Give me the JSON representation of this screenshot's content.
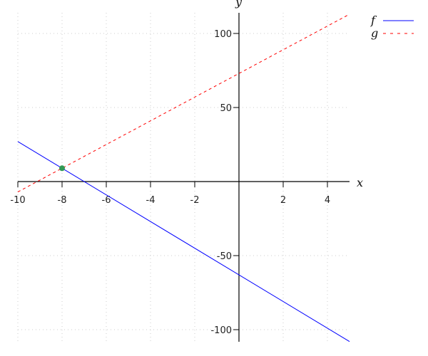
{
  "chart_data": {
    "type": "line",
    "title": "",
    "xlabel": "x",
    "ylabel": "y",
    "xlim": [
      -10,
      5
    ],
    "ylim": [
      -105,
      112
    ],
    "x_ticks": [
      -10,
      -8,
      -6,
      -4,
      -2,
      2,
      4
    ],
    "y_ticks": [
      -100,
      -50,
      50,
      100
    ],
    "grid": {
      "on": true,
      "style": "dotted",
      "x_every": 2,
      "y_every": 50
    },
    "legend": "top-right",
    "series": [
      {
        "name": "f",
        "color": "#0000ff",
        "style": "solid",
        "x": [
          -10,
          5
        ],
        "y": [
          27,
          -108
        ]
      },
      {
        "name": "g",
        "color": "#ff0000",
        "style": "dashed",
        "x": [
          -10,
          5
        ],
        "y": [
          -7,
          113
        ]
      }
    ],
    "points": [
      {
        "x": -8,
        "y": 9,
        "color": "#339955"
      }
    ]
  }
}
